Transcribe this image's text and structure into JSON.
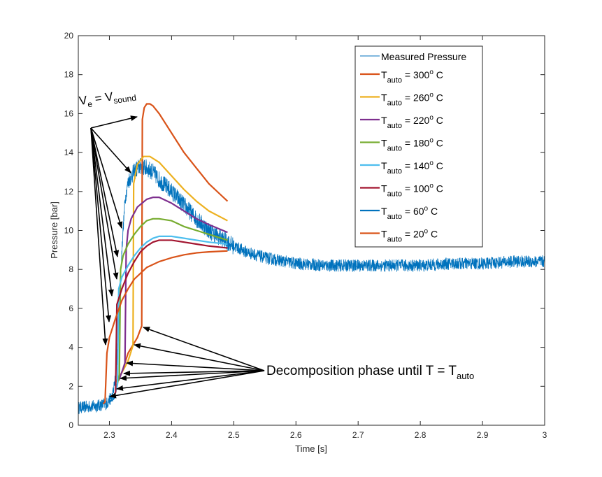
{
  "chart_data": {
    "type": "line",
    "xlabel": "Time [s]",
    "ylabel": "Pressure [bar]",
    "xlim": [
      2.25,
      3.0
    ],
    "ylim": [
      0,
      20
    ],
    "xticks": [
      "2.3",
      "2.4",
      "2.5",
      "2.6",
      "2.7",
      "2.8",
      "2.9",
      "3"
    ],
    "yticks": [
      "0",
      "2",
      "4",
      "6",
      "8",
      "10",
      "12",
      "14",
      "16",
      "18",
      "20"
    ],
    "grid": false,
    "legend_position": "top-right",
    "measured": {
      "name": "Measured Pressure",
      "color": "#0072BD",
      "x": [
        2.25,
        2.28,
        2.295,
        2.305,
        2.31,
        2.315,
        2.32,
        2.325,
        2.33,
        2.335,
        2.34,
        2.345,
        2.35,
        2.36,
        2.37,
        2.38,
        2.4,
        2.42,
        2.44,
        2.46,
        2.48,
        2.5,
        2.52,
        2.55,
        2.6,
        2.65,
        2.7,
        2.75,
        2.8,
        2.85,
        2.9,
        2.95,
        3.0
      ],
      "y": [
        0.9,
        1.0,
        1.1,
        1.5,
        2.5,
        5.0,
        9.0,
        11.5,
        12.5,
        12.8,
        13.0,
        13.2,
        13.3,
        13.2,
        13.0,
        12.6,
        12.0,
        11.3,
        10.6,
        10.0,
        9.6,
        9.2,
        8.9,
        8.6,
        8.3,
        8.2,
        8.2,
        8.2,
        8.2,
        8.3,
        8.3,
        8.4,
        8.4
      ]
    },
    "series": [
      {
        "name": "T_auto = 300° C",
        "label_main": "T",
        "label_sub": "auto",
        "label_value": " = 300",
        "label_sup": "o",
        "label_unit": " C",
        "color": "#D95319",
        "x": [
          2.25,
          2.29,
          2.31,
          2.32,
          2.33,
          2.345,
          2.352,
          2.353,
          2.356,
          2.36,
          2.365,
          2.37,
          2.38,
          2.39,
          2.4,
          2.42,
          2.44,
          2.46,
          2.48,
          2.49
        ],
        "y": [
          null,
          null,
          null,
          2.7,
          3.7,
          4.5,
          5.1,
          15.7,
          16.3,
          16.5,
          16.5,
          16.4,
          16.0,
          15.5,
          15.0,
          14.0,
          13.2,
          12.4,
          11.8,
          11.5
        ]
      },
      {
        "name": "T_auto = 260° C",
        "label_main": "T",
        "label_sub": "auto",
        "label_value": " = 260",
        "label_sup": "o",
        "label_unit": " C",
        "color": "#EDB120",
        "x": [
          2.31,
          2.32,
          2.33,
          2.338,
          2.339,
          2.345,
          2.355,
          2.365,
          2.38,
          2.4,
          2.42,
          2.44,
          2.46,
          2.49
        ],
        "y": [
          2.2,
          2.7,
          3.3,
          4.1,
          12.4,
          13.4,
          13.8,
          13.8,
          13.5,
          12.8,
          12.1,
          11.5,
          11.0,
          10.5
        ]
      },
      {
        "name": "T_auto = 220° C",
        "label_main": "T",
        "label_sub": "auto",
        "label_value": " = 220",
        "label_sup": "o",
        "label_unit": " C",
        "color": "#7E2F8E",
        "x": [
          2.315,
          2.322,
          2.325,
          2.327,
          2.33,
          2.335,
          2.345,
          2.36,
          2.37,
          2.38,
          2.4,
          2.42,
          2.44,
          2.46,
          2.49
        ],
        "y": [
          2.3,
          2.9,
          3.2,
          9.0,
          10.0,
          10.6,
          11.2,
          11.6,
          11.7,
          11.7,
          11.4,
          11.0,
          10.6,
          10.3,
          9.9
        ]
      },
      {
        "name": "T_auto = 180° C",
        "label_main": "T",
        "label_sub": "auto",
        "label_value": " = 180",
        "label_sup": "o",
        "label_unit": " C",
        "color": "#77AC30",
        "x": [
          2.312,
          2.316,
          2.318,
          2.322,
          2.33,
          2.34,
          2.35,
          2.36,
          2.37,
          2.38,
          2.4,
          2.42,
          2.44,
          2.46,
          2.49
        ],
        "y": [
          2.0,
          2.6,
          8.0,
          8.7,
          9.3,
          9.8,
          10.2,
          10.5,
          10.6,
          10.6,
          10.5,
          10.2,
          10.0,
          9.8,
          9.5
        ]
      },
      {
        "name": "T_auto = 140° C",
        "label_main": "T",
        "label_sub": "auto",
        "label_value": " = 140",
        "label_sup": "o",
        "label_unit": " C",
        "color": "#4DBEEE",
        "x": [
          2.31,
          2.313,
          2.315,
          2.32,
          2.33,
          2.34,
          2.35,
          2.36,
          2.37,
          2.38,
          2.4,
          2.42,
          2.44,
          2.46,
          2.49
        ],
        "y": [
          1.7,
          2.1,
          7.0,
          7.6,
          8.2,
          8.7,
          9.1,
          9.4,
          9.6,
          9.7,
          9.7,
          9.6,
          9.5,
          9.4,
          9.3
        ]
      },
      {
        "name": "T_auto = 100° C",
        "label_main": "T",
        "label_sub": "auto",
        "label_value": " = 100",
        "label_sup": "o",
        "label_unit": " C",
        "color": "#A2142F",
        "x": [
          2.307,
          2.31,
          2.312,
          2.32,
          2.33,
          2.34,
          2.35,
          2.36,
          2.37,
          2.38,
          2.4,
          2.42,
          2.44,
          2.46,
          2.49
        ],
        "y": [
          1.5,
          1.7,
          6.2,
          7.0,
          7.8,
          8.4,
          8.9,
          9.2,
          9.4,
          9.5,
          9.5,
          9.4,
          9.3,
          9.2,
          9.1
        ]
      },
      {
        "name": "T_auto = 60° C",
        "label_main": "T",
        "label_sub": "auto",
        "label_value": " = 60",
        "label_sup": "o",
        "label_unit": " C",
        "color": "#0072BD",
        "x": [
          2.3,
          2.305,
          2.308,
          2.31,
          2.31
        ],
        "y": [
          1.2,
          1.3,
          1.4,
          1.5,
          1.5
        ]
      },
      {
        "name": "T_auto = 20° C",
        "label_main": "T",
        "label_sub": "auto",
        "label_value": " = 20",
        "label_sup": "o",
        "label_unit": " C",
        "color": "#D95319",
        "x": [
          2.29,
          2.293,
          2.296,
          2.3,
          2.31,
          2.32,
          2.33,
          2.34,
          2.36,
          2.38,
          2.4,
          2.42,
          2.44,
          2.46,
          2.49
        ],
        "y": [
          1.1,
          1.2,
          3.7,
          4.5,
          5.5,
          6.4,
          7.0,
          7.5,
          8.1,
          8.4,
          8.6,
          8.75,
          8.85,
          8.9,
          8.95
        ]
      }
    ],
    "annotations": {
      "velocity": {
        "main": "V",
        "sub1": "e",
        "mid": " = V",
        "sub2": "sound"
      },
      "decomposition": {
        "main": "Decomposition phase until T = T",
        "sub": "auto"
      }
    }
  }
}
